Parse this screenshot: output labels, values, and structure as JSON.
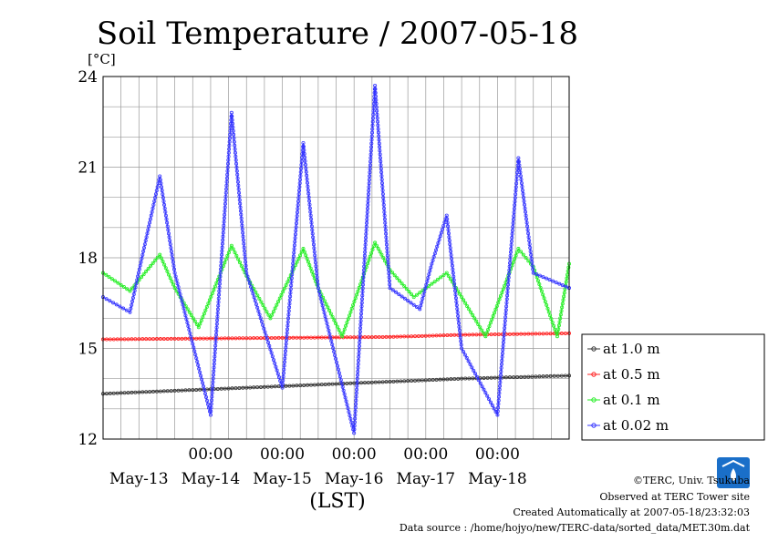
{
  "chart_data": {
    "type": "line",
    "title": "Soil Temperature / 2007-05-18",
    "ylabel": "[°C]",
    "xlabel": "(LST)",
    "ylim": [
      12,
      24
    ],
    "yticks": [
      12,
      15,
      18,
      21,
      24
    ],
    "xlim": [
      "2007-05-12 12:00",
      "2007-05-18 23:59"
    ],
    "time_tick_labels": [
      "00:00",
      "00:00",
      "00:00",
      "00:00",
      "00:00"
    ],
    "date_labels": [
      "May-13",
      "May-14",
      "May-15",
      "May-16",
      "May-17",
      "May-18"
    ],
    "grid": true,
    "legend_position": "right",
    "series": [
      {
        "name": "at 1.0 m",
        "color": "#333333",
        "x": [
          "2007-05-12 12:00",
          "2007-05-13 12:00",
          "2007-05-14 12:00",
          "2007-05-15 12:00",
          "2007-05-16 12:00",
          "2007-05-17 12:00",
          "2007-05-18 23:59"
        ],
        "values": [
          13.5,
          13.6,
          13.7,
          13.8,
          13.9,
          14.0,
          14.1
        ]
      },
      {
        "name": "at 0.5 m",
        "color": "#ff2020",
        "x": [
          "2007-05-12 12:00",
          "2007-05-13 12:00",
          "2007-05-14 12:00",
          "2007-05-15 12:00",
          "2007-05-16 12:00",
          "2007-05-17 12:00",
          "2007-05-18 23:59"
        ],
        "values": [
          15.3,
          15.32,
          15.34,
          15.36,
          15.38,
          15.45,
          15.5
        ]
      },
      {
        "name": "at 0.1 m",
        "color": "#22ee22",
        "x": [
          "2007-05-12 12:00",
          "2007-05-12 21:00",
          "2007-05-13 07:00",
          "2007-05-13 12:00",
          "2007-05-13 20:00",
          "2007-05-14 07:00",
          "2007-05-14 12:00",
          "2007-05-14 20:00",
          "2007-05-15 07:00",
          "2007-05-15 12:00",
          "2007-05-15 20:00",
          "2007-05-16 07:00",
          "2007-05-16 12:00",
          "2007-05-16 20:00",
          "2007-05-17 07:00",
          "2007-05-17 12:00",
          "2007-05-17 20:00",
          "2007-05-18 07:00",
          "2007-05-18 12:00",
          "2007-05-18 20:00",
          "2007-05-18 23:59"
        ],
        "values": [
          17.5,
          16.9,
          18.1,
          17.0,
          15.7,
          18.4,
          17.4,
          16.0,
          18.3,
          17.0,
          15.4,
          18.5,
          17.6,
          16.7,
          17.5,
          16.7,
          15.4,
          18.3,
          17.7,
          15.4,
          17.8
        ]
      },
      {
        "name": "at 0.02 m",
        "color": "#3333ff",
        "x": [
          "2007-05-12 12:00",
          "2007-05-12 21:00",
          "2007-05-13 07:00",
          "2007-05-13 12:00",
          "2007-05-14 00:00",
          "2007-05-14 07:00",
          "2007-05-14 12:00",
          "2007-05-15 00:00",
          "2007-05-15 07:00",
          "2007-05-15 12:00",
          "2007-05-16 00:00",
          "2007-05-16 07:00",
          "2007-05-16 12:00",
          "2007-05-16 22:00",
          "2007-05-17 02:00",
          "2007-05-17 07:00",
          "2007-05-17 12:00",
          "2007-05-18 00:00",
          "2007-05-18 07:00",
          "2007-05-18 12:00",
          "2007-05-18 23:59"
        ],
        "values": [
          16.7,
          16.2,
          20.7,
          17.5,
          12.8,
          22.8,
          17.5,
          13.7,
          21.8,
          17.0,
          12.2,
          23.7,
          17.0,
          16.3,
          17.8,
          19.4,
          15.0,
          12.8,
          21.3,
          17.5,
          17.0
        ]
      }
    ]
  },
  "credits": {
    "copyright": "©TERC, Univ. Tsukuba",
    "observed": "Observed at TERC Tower site",
    "created": "Created Automatically at 2007-05-18/23:32:03",
    "source": "Data source : /home/hojyo/new/TERC-data/sorted_data/MET.30m.dat",
    "logo_text": "TERC"
  }
}
